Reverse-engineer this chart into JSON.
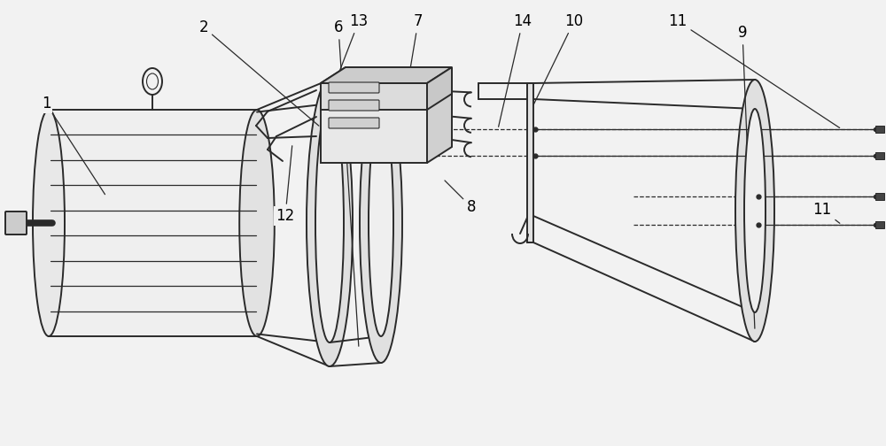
{
  "bg_color": "#f2f2f2",
  "line_color": "#2a2a2a",
  "lw": 1.4,
  "figsize": [
    10.0,
    5.04
  ],
  "dpi": 100,
  "xlim": [
    0,
    10
  ],
  "ylim": [
    0,
    5.04
  ]
}
